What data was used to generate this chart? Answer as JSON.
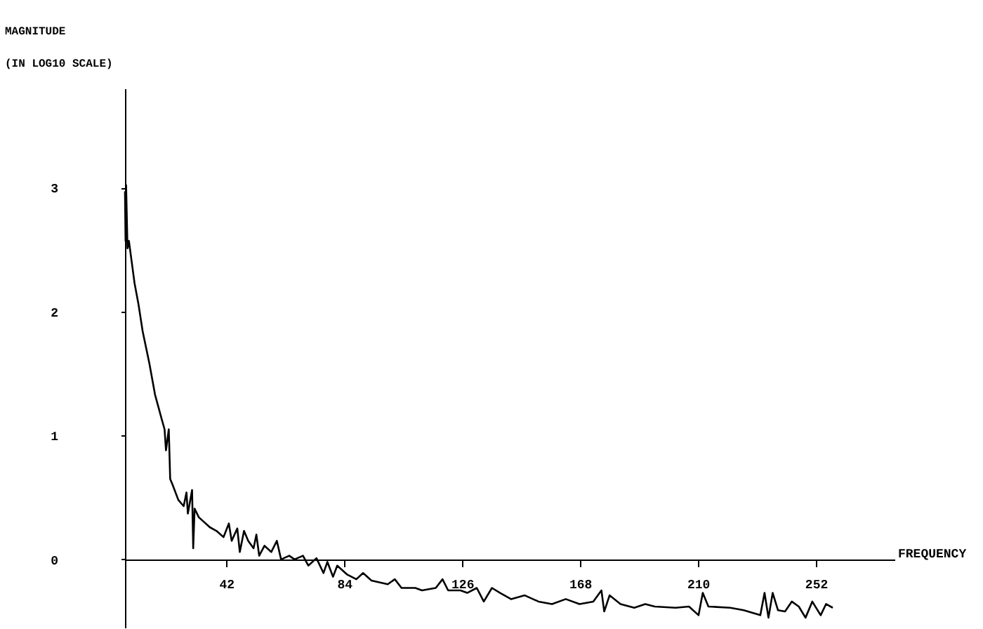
{
  "chart_data": {
    "type": "line",
    "ylabel": "MAGNITUDE\n(IN LOG10 SCALE)",
    "xlabel": "FREQUENCY",
    "xlim": [
      5.9,
      280
    ],
    "xticks": [
      42,
      84,
      126,
      168,
      210,
      252
    ],
    "ylim": [
      -0.55,
      3.8
    ],
    "yticks": [
      0,
      1,
      2,
      3
    ],
    "grid": false,
    "marker": "none",
    "line_style": "solid",
    "series": [
      {
        "color": "#000000",
        "x": [
          5.9,
          6.1,
          6.3,
          6.8,
          7.3,
          9.3,
          10.7,
          12.2,
          14.6,
          16.6,
          19.0,
          20.0,
          20.5,
          21.5,
          22.0,
          22.9,
          24.9,
          26.8,
          27.8,
          28.3,
          29.8,
          30.2,
          30.7,
          32.2,
          36.1,
          38.5,
          41.0,
          42.9,
          43.9,
          45.9,
          46.8,
          48.3,
          49.8,
          51.7,
          52.7,
          53.7,
          55.6,
          58.0,
          60.0,
          61.5,
          64.4,
          66.3,
          69.3,
          71.2,
          74.1,
          76.6,
          78.0,
          80.0,
          81.5,
          84.9,
          88.3,
          90.7,
          93.7,
          99.5,
          102.0,
          104.4,
          109.3,
          111.7,
          116.6,
          119.0,
          121.0,
          125.4,
          127.8,
          131.2,
          133.7,
          136.6,
          139.5,
          143.4,
          148.3,
          153.2,
          158.0,
          162.9,
          167.8,
          172.7,
          175.6,
          176.6,
          178.5,
          182.4,
          187.3,
          191.2,
          194.6,
          202.0,
          206.8,
          210.2,
          211.7,
          213.7,
          221.5,
          226.3,
          232.2,
          233.7,
          235.1,
          236.6,
          238.5,
          241.0,
          243.4,
          245.9,
          248.3,
          250.7,
          253.7,
          255.6,
          258.0
        ],
        "values": [
          2.97,
          2.57,
          3.02,
          2.51,
          2.57,
          2.23,
          2.06,
          1.84,
          1.58,
          1.33,
          1.13,
          1.05,
          0.88,
          1.05,
          0.65,
          0.6,
          0.48,
          0.43,
          0.54,
          0.37,
          0.56,
          0.09,
          0.41,
          0.34,
          0.26,
          0.23,
          0.18,
          0.29,
          0.15,
          0.25,
          0.06,
          0.23,
          0.15,
          0.09,
          0.2,
          0.03,
          0.11,
          0.06,
          0.15,
          0.0,
          0.03,
          0.0,
          0.03,
          -0.05,
          0.01,
          -0.11,
          -0.02,
          -0.14,
          -0.05,
          -0.12,
          -0.16,
          -0.11,
          -0.17,
          -0.2,
          -0.16,
          -0.23,
          -0.23,
          -0.25,
          -0.23,
          -0.16,
          -0.25,
          -0.25,
          -0.27,
          -0.23,
          -0.34,
          -0.23,
          -0.27,
          -0.32,
          -0.29,
          -0.34,
          -0.36,
          -0.32,
          -0.36,
          -0.34,
          -0.25,
          -0.42,
          -0.29,
          -0.36,
          -0.39,
          -0.36,
          -0.38,
          -0.39,
          -0.38,
          -0.45,
          -0.27,
          -0.38,
          -0.39,
          -0.41,
          -0.45,
          -0.27,
          -0.47,
          -0.27,
          -0.41,
          -0.42,
          -0.34,
          -0.38,
          -0.47,
          -0.34,
          -0.45,
          -0.36,
          -0.39
        ]
      }
    ]
  }
}
